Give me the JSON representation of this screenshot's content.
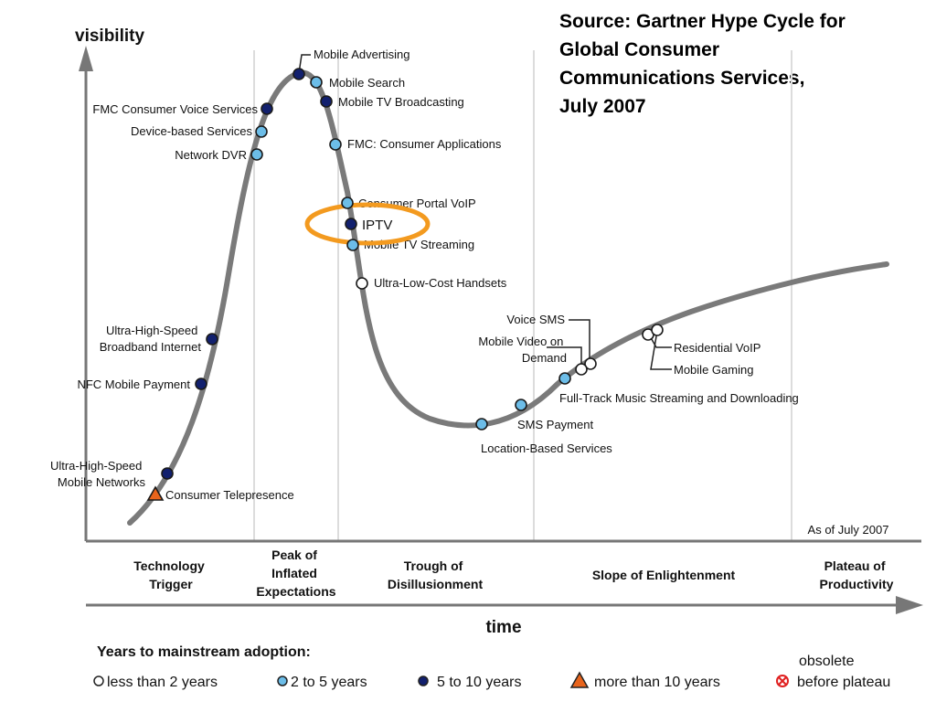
{
  "source": {
    "lines": [
      "Source: Gartner Hype Cycle for",
      "Global Consumer",
      "Communications Services,",
      "July 2007"
    ]
  },
  "axes": {
    "y_label": "visibility",
    "x_label": "time",
    "as_of": "As of July 2007"
  },
  "phases": [
    {
      "lines": [
        "Technology",
        "Trigger"
      ]
    },
    {
      "lines": [
        "Peak of",
        "Inflated",
        "Expectations"
      ]
    },
    {
      "lines": [
        "Trough of",
        "Disillusionment"
      ]
    },
    {
      "lines": [
        "Slope of Enlightenment"
      ]
    },
    {
      "lines": [
        "Plateau of",
        "Productivity"
      ]
    }
  ],
  "technologies": [
    {
      "name": "Mobile Advertising",
      "category": "5-10"
    },
    {
      "name": "Mobile Search",
      "category": "2-5"
    },
    {
      "name": "Mobile TV Broadcasting",
      "category": "5-10"
    },
    {
      "name": "FMC Consumer Voice Services",
      "category": "5-10"
    },
    {
      "name": "Device-based Services",
      "category": "2-5"
    },
    {
      "name": "Network DVR",
      "category": "2-5"
    },
    {
      "name": "FMC: Consumer Applications",
      "category": "2-5"
    },
    {
      "name": "Consumer Portal VoIP",
      "category": "2-5"
    },
    {
      "name": "IPTV",
      "category": "5-10",
      "highlighted": true
    },
    {
      "name": "Mobile TV Streaming",
      "category": "2-5"
    },
    {
      "name": "Ultra-Low-Cost Handsets",
      "category": "<2"
    },
    {
      "name": "Ultra-High-Speed Broadband Internet",
      "category": "5-10"
    },
    {
      "name": "NFC Mobile Payment",
      "category": "5-10"
    },
    {
      "name": "Ultra-High-Speed Mobile Networks",
      "category": "5-10"
    },
    {
      "name": "Consumer Telepresence",
      "category": ">10"
    },
    {
      "name": "Voice SMS",
      "category": "<2"
    },
    {
      "name": "Mobile Video on Demand",
      "category": "<2"
    },
    {
      "name": "Full-Track Music Streaming and Downloading",
      "category": "2-5"
    },
    {
      "name": "SMS Payment",
      "category": "2-5"
    },
    {
      "name": "Location-Based Services",
      "category": "2-5"
    },
    {
      "name": "Residential VoIP",
      "category": "<2"
    },
    {
      "name": "Mobile Gaming",
      "category": "<2"
    }
  ],
  "legend": {
    "title": "Years to mainstream adoption:",
    "items": [
      {
        "label": "less than 2 years",
        "key": "<2"
      },
      {
        "label": "2 to 5 years",
        "key": "2-5"
      },
      {
        "label": "5 to 10 years",
        "key": "5-10"
      },
      {
        "label": "more than 10 years",
        "key": ">10"
      },
      {
        "label": "obsolete before plateau",
        "lines": [
          "obsolete",
          "before plateau"
        ],
        "key": "obsolete"
      }
    ]
  },
  "colors": {
    "<2": "#ffffff",
    "2-5": "#6cbde8",
    "5-10": "#12206e",
    ">10": "#e8641c",
    "obsolete": "#e02020",
    "curve": "#7a7a7a",
    "highlight": "#f39a1f"
  }
}
